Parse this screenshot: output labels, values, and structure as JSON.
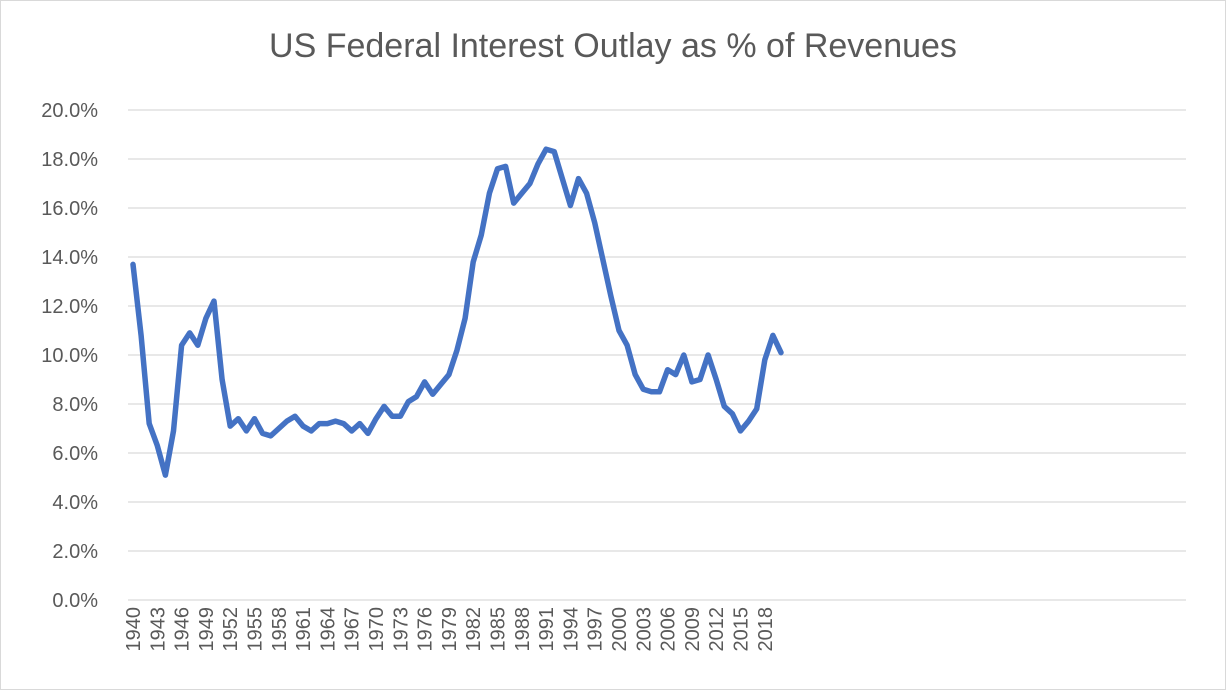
{
  "chart_data": {
    "type": "line",
    "title": "US Federal Interest Outlay as % of Revenues",
    "xlabel": "",
    "ylabel": "",
    "ylim": [
      0,
      20
    ],
    "yticks": [
      "0.0%",
      "2.0%",
      "4.0%",
      "6.0%",
      "8.0%",
      "10.0%",
      "12.0%",
      "14.0%",
      "16.0%",
      "18.0%",
      "20.0%"
    ],
    "xticks": [
      "1940",
      "1943",
      "1946",
      "1949",
      "1952",
      "1955",
      "1958",
      "1961",
      "1964",
      "1967",
      "1970",
      "1973",
      "1976",
      "1979",
      "1982",
      "1985",
      "1988",
      "1991",
      "1994",
      "1997",
      "2000",
      "2003",
      "2006",
      "2009",
      "2012",
      "2015",
      "2018"
    ],
    "grid": true,
    "legend": "none",
    "series_color": "#4472C4",
    "x": [
      1940,
      1941,
      1942,
      1943,
      1944,
      1945,
      1946,
      1947,
      1948,
      1949,
      1950,
      1951,
      1952,
      1953,
      1954,
      1955,
      1956,
      1957,
      1958,
      1959,
      1960,
      1961,
      1962,
      1963,
      1964,
      1965,
      1966,
      1967,
      1968,
      1969,
      1970,
      1971,
      1972,
      1973,
      1974,
      1975,
      1976,
      1977,
      1978,
      1979,
      1980,
      1981,
      1982,
      1983,
      1984,
      1985,
      1986,
      1987,
      1988,
      1989,
      1990,
      1991,
      1992,
      1993,
      1994,
      1995,
      1996,
      1997,
      1998,
      1999,
      2000,
      2001,
      2002,
      2003,
      2004,
      2005,
      2006,
      2007,
      2008,
      2009,
      2010,
      2011,
      2012,
      2013,
      2014,
      2015,
      2016,
      2017,
      2018,
      2019,
      2020
    ],
    "values": [
      13.7,
      10.8,
      7.2,
      6.3,
      5.1,
      6.9,
      10.4,
      10.9,
      10.4,
      11.5,
      12.2,
      9.0,
      7.1,
      7.4,
      6.9,
      7.4,
      6.8,
      6.7,
      7.0,
      7.3,
      7.5,
      7.1,
      6.9,
      7.2,
      7.2,
      7.3,
      7.2,
      6.9,
      7.2,
      6.8,
      7.4,
      7.9,
      7.5,
      7.5,
      8.1,
      8.3,
      8.9,
      8.4,
      8.8,
      9.2,
      10.2,
      11.5,
      13.8,
      14.9,
      16.6,
      17.6,
      17.7,
      16.2,
      16.6,
      17.0,
      17.8,
      18.4,
      18.3,
      17.2,
      16.1,
      17.2,
      16.6,
      15.4,
      13.9,
      12.4,
      11.0,
      10.4,
      9.2,
      8.6,
      8.5,
      8.5,
      9.4,
      9.2,
      10.0,
      8.9,
      9.0,
      10.0,
      9.0,
      7.9,
      7.6,
      6.9,
      7.3,
      7.8,
      9.8,
      10.8,
      10.1
    ]
  }
}
